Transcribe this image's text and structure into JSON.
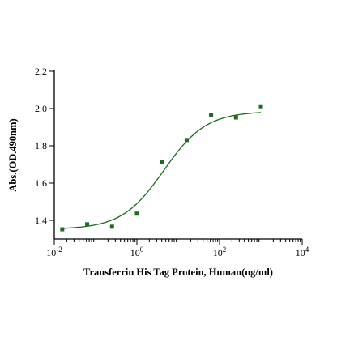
{
  "chart_data": {
    "type": "scatter",
    "xlabel": "Transferrin His Tag Protein, Human(ng/ml)",
    "ylabel": "Abs.(OD.490nm)",
    "xscale": "log",
    "xlim": [
      0.01,
      10000
    ],
    "ylim": [
      1.3,
      2.2
    ],
    "grid": false,
    "x_ticks": [
      {
        "base": "10",
        "exp": "-2"
      },
      {
        "base": "10",
        "exp": "0"
      },
      {
        "base": "10",
        "exp": "2"
      },
      {
        "base": "10",
        "exp": "4"
      }
    ],
    "y_ticks": [
      "1.4",
      "1.6",
      "1.8",
      "2.0",
      "2.2"
    ],
    "series": [
      {
        "marker": "square",
        "color": "#1e6b1e",
        "x": [
          0.0156,
          0.0625,
          0.25,
          1,
          4,
          16,
          62.5,
          250,
          1000
        ],
        "y": [
          1.352,
          1.379,
          1.366,
          1.436,
          1.711,
          1.831,
          1.966,
          1.952,
          2.012
        ]
      }
    ],
    "fit": {
      "model": "4PL",
      "color": "#1e6b1e",
      "bottom": 1.352,
      "top": 1.985,
      "ec50": 4.5,
      "hill": 0.85
    }
  }
}
